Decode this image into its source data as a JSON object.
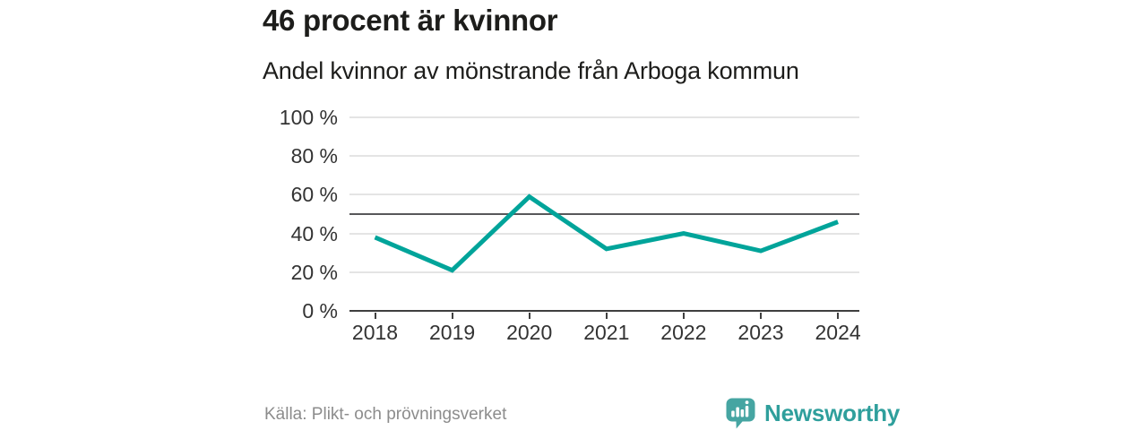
{
  "header": {
    "title": "46 procent är kvinnor",
    "subtitle": "Andel kvinnor av mönstrande från Arboga kommun"
  },
  "chart_data": {
    "type": "line",
    "title": "46 procent är kvinnor",
    "subtitle": "Andel kvinnor av mönstrande från Arboga kommun",
    "categories": [
      "2018",
      "2019",
      "2020",
      "2021",
      "2022",
      "2023",
      "2024"
    ],
    "values": [
      38,
      21,
      59,
      32,
      40,
      31,
      46
    ],
    "unit": "%",
    "ylim": [
      0,
      100
    ],
    "yticks": [
      0,
      20,
      40,
      60,
      80,
      100
    ],
    "ytick_suffix": " %",
    "reference_line": 50,
    "grid": true,
    "legend": "none",
    "line_color": "#00a49a"
  },
  "footer": {
    "source": "Källa: Plikt- och prövningsverket",
    "brand": "Newsworthy"
  },
  "colors": {
    "accent_line": "#00a49a",
    "brand_teal": "#46a5a2",
    "brand_text": "#2f9f9c",
    "reference_line": "#58585a",
    "gridline": "#e4e4e4",
    "axis": "#3f3f3f"
  }
}
